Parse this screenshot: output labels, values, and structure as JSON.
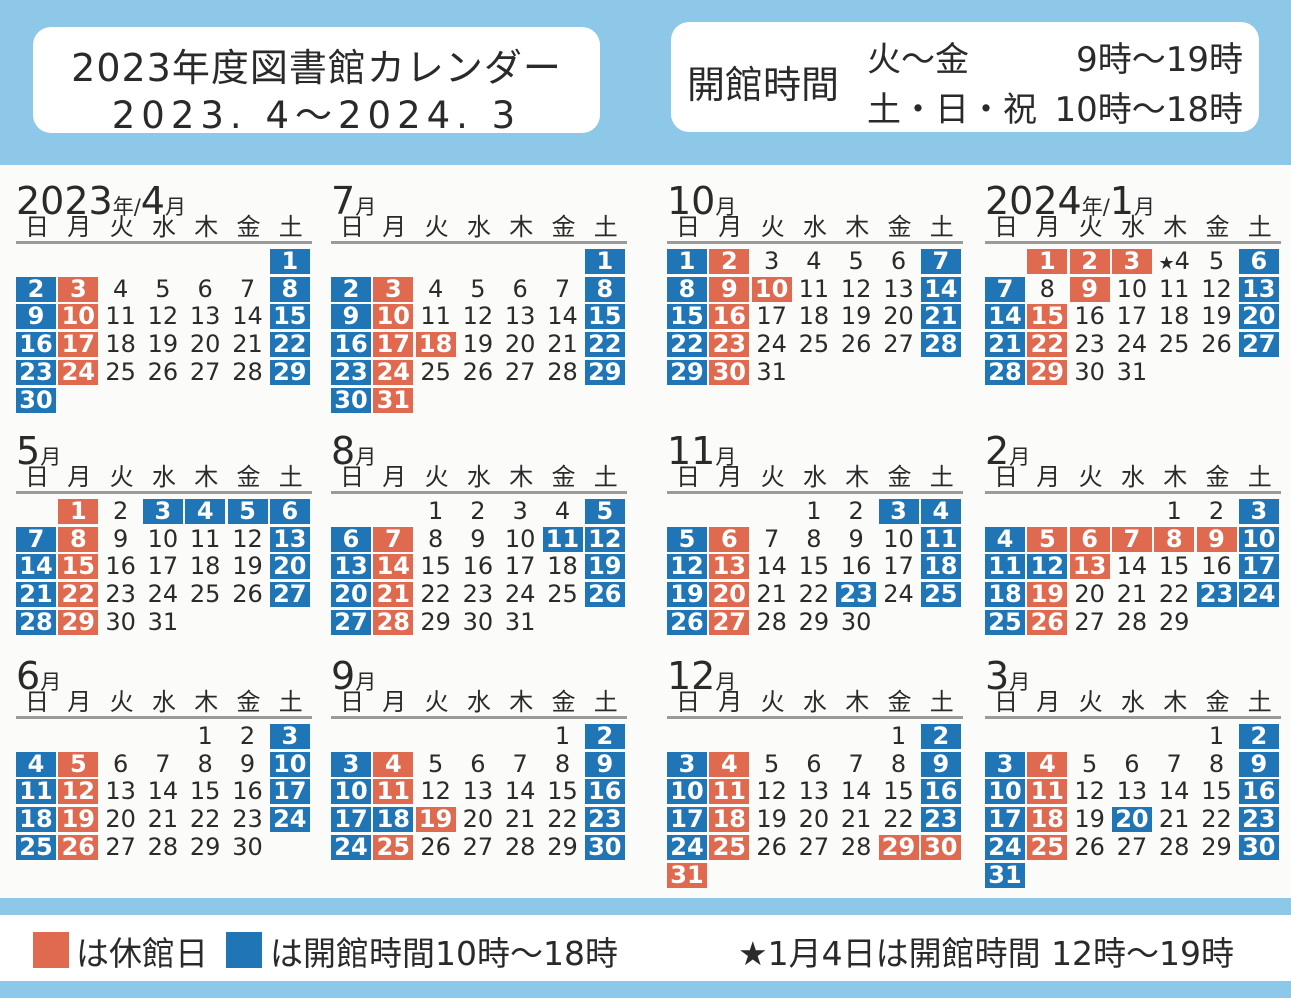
{
  "title": {
    "line1": "2023年度図書館カレンダー",
    "line2": "2023. 4～2024. 3"
  },
  "opening_hours": {
    "label": "開館時間",
    "rows": [
      {
        "days": "火～金",
        "time": "9時～19時"
      },
      {
        "days": "土・日・祝",
        "time": "10時～18時"
      }
    ]
  },
  "weekdays": [
    "日",
    "月",
    "火",
    "水",
    "木",
    "金",
    "土"
  ],
  "colors": {
    "closed": "#e06a4f",
    "special_hours": "#1f75b6",
    "band": "#8dc8e8"
  },
  "months": [
    {
      "year": "2023",
      "year_suffix": "年/",
      "month": "4",
      "month_suffix": "月",
      "offset": 6,
      "days": 30,
      "red": [
        3,
        10,
        17,
        24
      ],
      "blue": [
        1,
        2,
        8,
        9,
        15,
        16,
        22,
        23,
        29,
        30
      ],
      "star": []
    },
    {
      "year": "",
      "year_suffix": "",
      "month": "7",
      "month_suffix": "月",
      "offset": 6,
      "days": 31,
      "red": [
        3,
        10,
        17,
        18,
        24,
        31
      ],
      "blue": [
        1,
        2,
        8,
        9,
        15,
        16,
        22,
        23,
        29,
        30
      ],
      "star": []
    },
    {
      "year": "",
      "year_suffix": "",
      "month": "10",
      "month_suffix": "月",
      "offset": 0,
      "days": 31,
      "red": [
        2,
        9,
        10,
        16,
        23,
        30
      ],
      "blue": [
        1,
        7,
        8,
        14,
        15,
        21,
        22,
        28,
        29
      ],
      "star": []
    },
    {
      "year": "2024",
      "year_suffix": "年/",
      "month": "1",
      "month_suffix": "月",
      "offset": 1,
      "days": 31,
      "red": [
        1,
        2,
        3,
        9,
        15,
        22,
        29
      ],
      "blue": [
        6,
        7,
        13,
        14,
        20,
        21,
        27,
        28
      ],
      "star": [
        4
      ]
    },
    {
      "year": "",
      "year_suffix": "",
      "month": "5",
      "month_suffix": "月",
      "offset": 1,
      "days": 31,
      "red": [
        1,
        8,
        15,
        22,
        29
      ],
      "blue": [
        3,
        4,
        5,
        6,
        7,
        13,
        14,
        20,
        21,
        27,
        28
      ],
      "star": []
    },
    {
      "year": "",
      "year_suffix": "",
      "month": "8",
      "month_suffix": "月",
      "offset": 2,
      "days": 31,
      "red": [
        7,
        14,
        21,
        28
      ],
      "blue": [
        5,
        6,
        11,
        12,
        13,
        19,
        20,
        26,
        27
      ],
      "star": []
    },
    {
      "year": "",
      "year_suffix": "",
      "month": "11",
      "month_suffix": "月",
      "offset": 3,
      "days": 30,
      "red": [
        6,
        13,
        20,
        27
      ],
      "blue": [
        3,
        4,
        5,
        11,
        12,
        18,
        19,
        23,
        25,
        26
      ],
      "star": []
    },
    {
      "year": "",
      "year_suffix": "",
      "month": "2",
      "month_suffix": "月",
      "offset": 4,
      "days": 29,
      "red": [
        5,
        6,
        7,
        8,
        9,
        13,
        19,
        26
      ],
      "blue": [
        3,
        4,
        10,
        11,
        12,
        17,
        18,
        23,
        24,
        25
      ],
      "star": []
    },
    {
      "year": "",
      "year_suffix": "",
      "month": "6",
      "month_suffix": "月",
      "offset": 4,
      "days": 30,
      "red": [
        5,
        12,
        19,
        26
      ],
      "blue": [
        3,
        4,
        10,
        11,
        17,
        18,
        24,
        25
      ],
      "star": []
    },
    {
      "year": "",
      "year_suffix": "",
      "month": "9",
      "month_suffix": "月",
      "offset": 5,
      "days": 30,
      "red": [
        4,
        11,
        19,
        25
      ],
      "blue": [
        2,
        3,
        9,
        10,
        16,
        17,
        18,
        23,
        24,
        30
      ],
      "star": []
    },
    {
      "year": "",
      "year_suffix": "",
      "month": "12",
      "month_suffix": "月",
      "offset": 5,
      "days": 31,
      "red": [
        4,
        11,
        18,
        25,
        29,
        30,
        31
      ],
      "blue": [
        2,
        3,
        9,
        10,
        16,
        17,
        23,
        24
      ],
      "star": []
    },
    {
      "year": "",
      "year_suffix": "",
      "month": "3",
      "month_suffix": "月",
      "offset": 5,
      "days": 31,
      "red": [
        4,
        11,
        18,
        25
      ],
      "blue": [
        2,
        3,
        9,
        10,
        16,
        17,
        20,
        23,
        24,
        30,
        31
      ],
      "star": []
    }
  ],
  "legend": {
    "closed": "は休館日",
    "special": "は開館時間10時～18時",
    "note": "★1月4日は開館時間 12時～19時"
  }
}
